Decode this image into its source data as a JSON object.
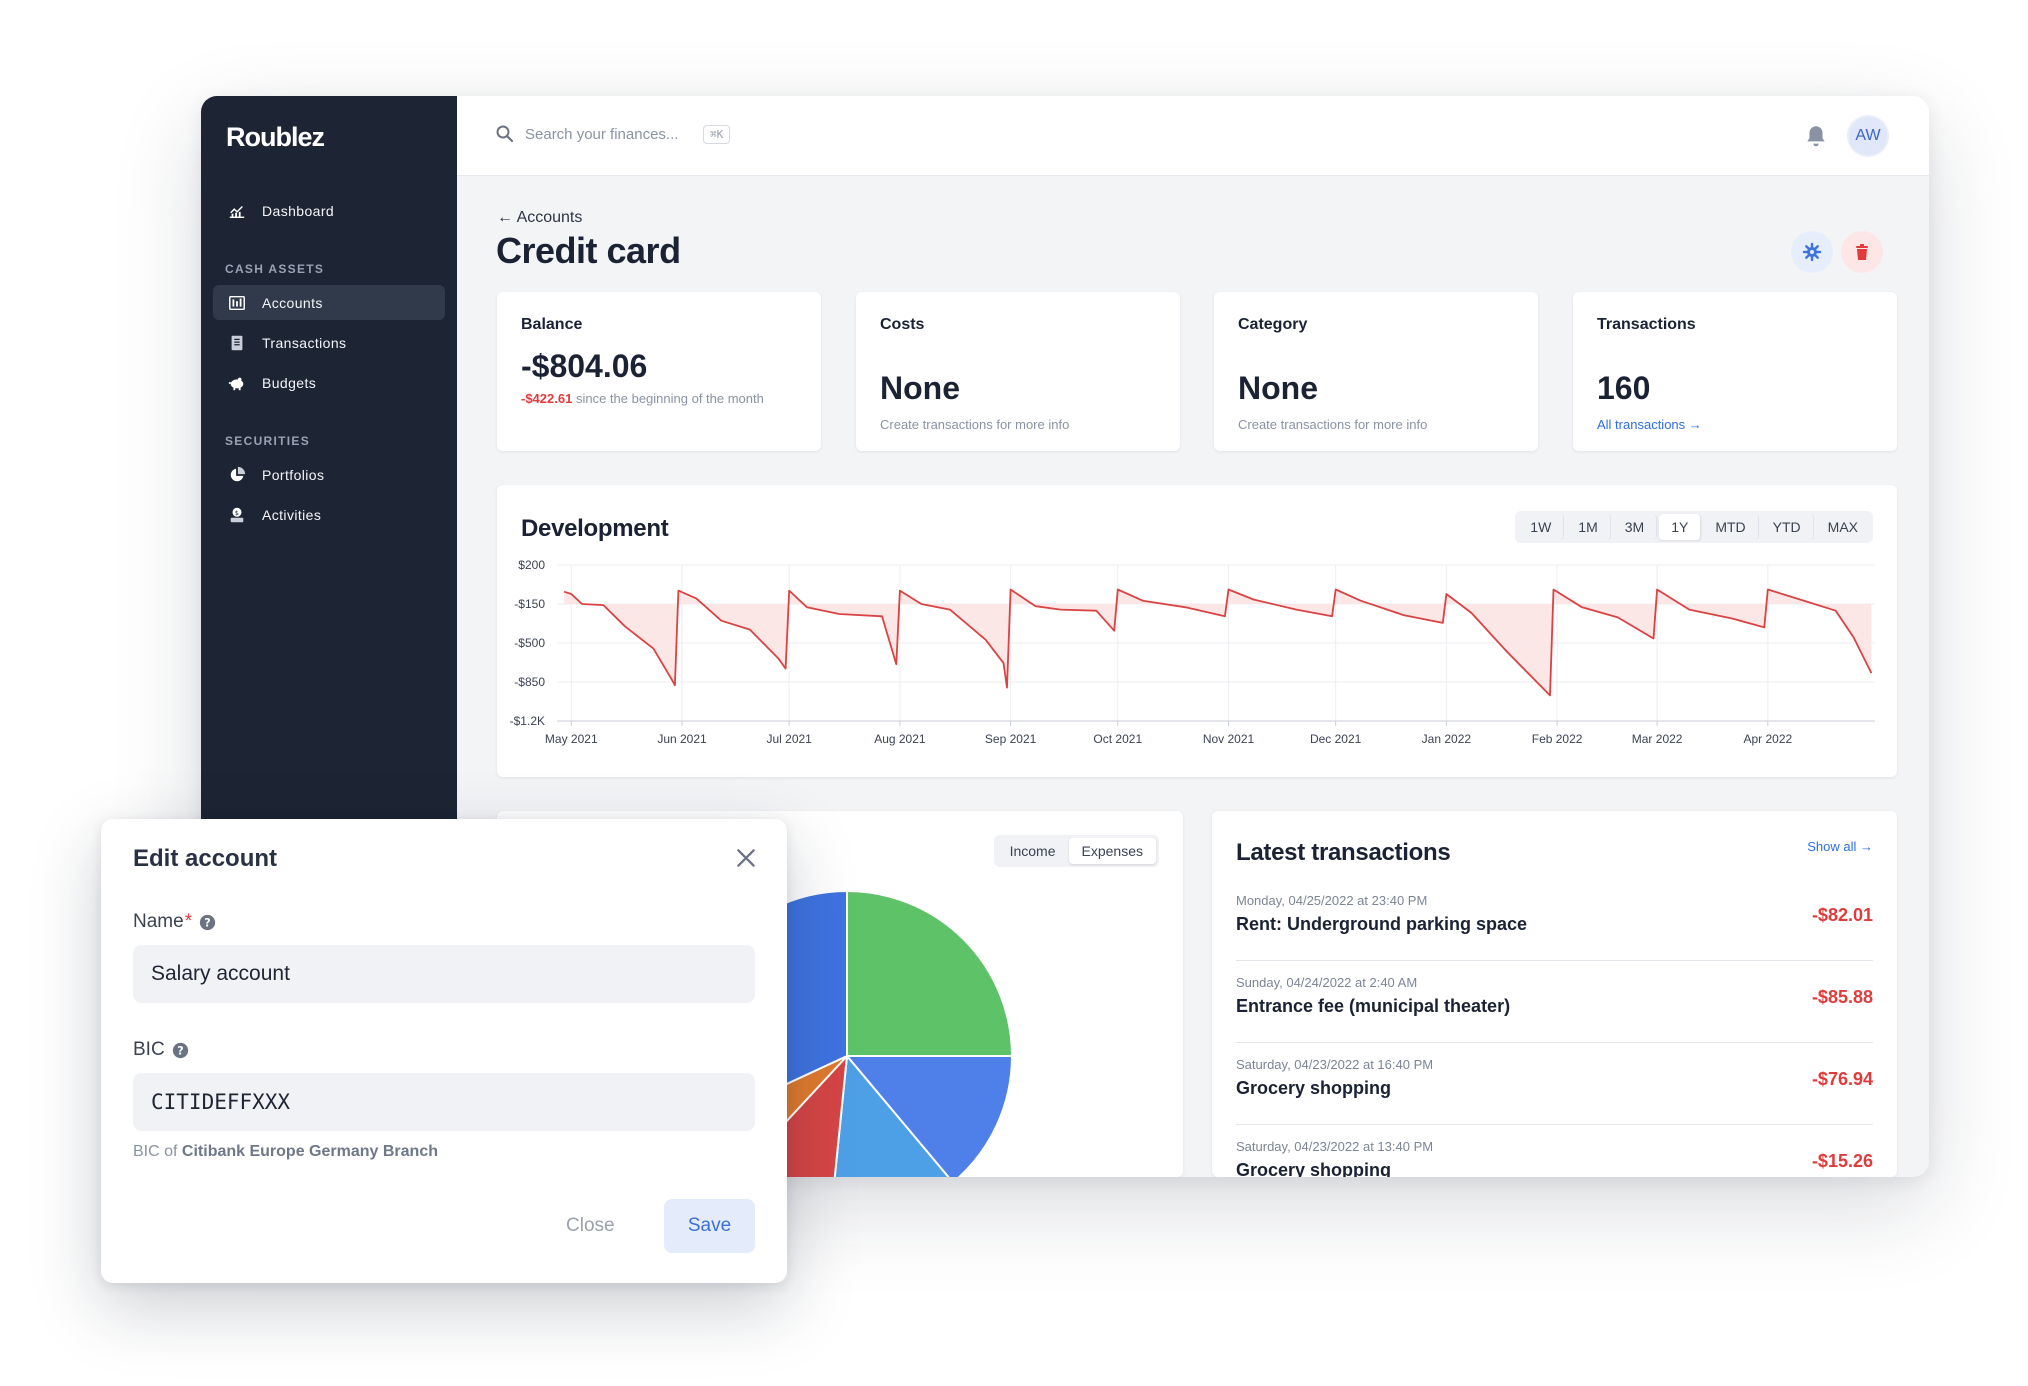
{
  "app": {
    "name": "Roublez"
  },
  "sidebar": {
    "dashboard": {
      "label": "Dashboard"
    },
    "sections": [
      {
        "title": "CASH ASSETS",
        "items": [
          {
            "label": "Accounts"
          },
          {
            "label": "Transactions"
          },
          {
            "label": "Budgets"
          }
        ]
      },
      {
        "title": "SECURITIES",
        "items": [
          {
            "label": "Portfolios"
          },
          {
            "label": "Activities"
          }
        ]
      }
    ]
  },
  "topbar": {
    "search_placeholder": "Search your finances...",
    "shortcut": "⌘K",
    "avatar_initials": "AW"
  },
  "page": {
    "back_label": "Accounts",
    "title": "Credit card"
  },
  "stats": {
    "balance": {
      "label": "Balance",
      "value": "-$804.06",
      "delta": "-$422.61",
      "delta_text": "since the beginning of the month"
    },
    "costs": {
      "label": "Costs",
      "value": "None",
      "sub": "Create transactions for more info"
    },
    "category": {
      "label": "Category",
      "value": "None",
      "sub": "Create transactions for more info"
    },
    "transactions": {
      "label": "Transactions",
      "value": "160",
      "link": "All transactions →"
    }
  },
  "development": {
    "title": "Development",
    "ranges": [
      "1W",
      "1M",
      "3M",
      "1Y",
      "MTD",
      "YTD",
      "MAX"
    ],
    "active_range": "1Y"
  },
  "breakdown": {
    "tabs": [
      "Income",
      "Expenses"
    ],
    "active_tab": "Expenses"
  },
  "latest": {
    "title": "Latest transactions",
    "show_all": "Show all →",
    "items": [
      {
        "date": "Monday, 04/25/2022 at 23:40 PM",
        "name": "Rent: Underground parking space",
        "amount": "-$82.01"
      },
      {
        "date": "Sunday, 04/24/2022 at 2:40 AM",
        "name": "Entrance fee (municipal theater)",
        "amount": "-$85.88"
      },
      {
        "date": "Saturday, 04/23/2022 at 16:40 PM",
        "name": "Grocery shopping",
        "amount": "-$76.94"
      },
      {
        "date": "Saturday, 04/23/2022 at 13:40 PM",
        "name": "Grocery shopping",
        "amount": "-$15.26"
      }
    ]
  },
  "modal": {
    "title": "Edit account",
    "name_label": "Name",
    "name_required_mark": "*",
    "name_value": "Salary account",
    "bic_label": "BIC",
    "bic_value": "CITIDEFFXXX",
    "bic_hint_prefix": "BIC of",
    "bic_hint_bank": "Citibank Europe Germany Branch",
    "close_label": "Close",
    "save_label": "Save"
  },
  "colors": {
    "sidebar_bg": "#1d2433",
    "accent_blue": "#2f6fe0",
    "negative_red": "#e13b3b",
    "chart_line": "#d94343",
    "chart_fill": "#fbe3e3"
  },
  "chart_data": [
    {
      "type": "area",
      "title": "Development",
      "y_ticks": [
        "$200",
        "-$150",
        "-$500",
        "-$850",
        "-$1.2K"
      ],
      "ylim": [
        -1200,
        200
      ],
      "x_ticks": [
        "May 2021",
        "Jun 2021",
        "Jul 2021",
        "Aug 2021",
        "Sep 2021",
        "Oct 2021",
        "Nov 2021",
        "Dec 2021",
        "Jan 2022",
        "Feb 2022",
        "Mar 2022",
        "Apr 2022"
      ],
      "grid": true,
      "series": [
        {
          "values": [
            {
              "x": "2021-04-29",
              "y": -40
            },
            {
              "x": "2021-05-01",
              "y": -60
            },
            {
              "x": "2021-05-04",
              "y": -150
            },
            {
              "x": "2021-05-10",
              "y": -160
            },
            {
              "x": "2021-05-16",
              "y": -350
            },
            {
              "x": "2021-05-24",
              "y": -550
            },
            {
              "x": "2021-05-29",
              "y": -820
            },
            {
              "x": "2021-05-30",
              "y": -880
            },
            {
              "x": "2021-05-31",
              "y": -30
            },
            {
              "x": "2021-06-05",
              "y": -100
            },
            {
              "x": "2021-06-12",
              "y": -300
            },
            {
              "x": "2021-06-20",
              "y": -380
            },
            {
              "x": "2021-06-28",
              "y": -640
            },
            {
              "x": "2021-06-30",
              "y": -730
            },
            {
              "x": "2021-07-01",
              "y": -30
            },
            {
              "x": "2021-07-06",
              "y": -180
            },
            {
              "x": "2021-07-15",
              "y": -240
            },
            {
              "x": "2021-07-27",
              "y": -260
            },
            {
              "x": "2021-07-31",
              "y": -690
            },
            {
              "x": "2021-08-01",
              "y": -30
            },
            {
              "x": "2021-08-07",
              "y": -150
            },
            {
              "x": "2021-08-15",
              "y": -200
            },
            {
              "x": "2021-08-25",
              "y": -470
            },
            {
              "x": "2021-08-30",
              "y": -680
            },
            {
              "x": "2021-08-31",
              "y": -900
            },
            {
              "x": "2021-09-01",
              "y": -20
            },
            {
              "x": "2021-09-08",
              "y": -170
            },
            {
              "x": "2021-09-15",
              "y": -200
            },
            {
              "x": "2021-09-25",
              "y": -210
            },
            {
              "x": "2021-09-30",
              "y": -390
            },
            {
              "x": "2021-10-01",
              "y": -20
            },
            {
              "x": "2021-10-08",
              "y": -120
            },
            {
              "x": "2021-10-20",
              "y": -180
            },
            {
              "x": "2021-10-31",
              "y": -260
            },
            {
              "x": "2021-11-01",
              "y": -20
            },
            {
              "x": "2021-11-08",
              "y": -110
            },
            {
              "x": "2021-11-20",
              "y": -200
            },
            {
              "x": "2021-11-30",
              "y": -260
            },
            {
              "x": "2021-12-01",
              "y": -20
            },
            {
              "x": "2021-12-08",
              "y": -120
            },
            {
              "x": "2021-12-20",
              "y": -250
            },
            {
              "x": "2021-12-31",
              "y": -320
            },
            {
              "x": "2022-01-01",
              "y": -60
            },
            {
              "x": "2022-01-08",
              "y": -230
            },
            {
              "x": "2022-01-18",
              "y": -580
            },
            {
              "x": "2022-01-30",
              "y": -970
            },
            {
              "x": "2022-01-31",
              "y": -20
            },
            {
              "x": "2022-02-08",
              "y": -180
            },
            {
              "x": "2022-02-18",
              "y": -270
            },
            {
              "x": "2022-02-28",
              "y": -460
            },
            {
              "x": "2022-03-01",
              "y": -20
            },
            {
              "x": "2022-03-10",
              "y": -200
            },
            {
              "x": "2022-03-22",
              "y": -280
            },
            {
              "x": "2022-03-31",
              "y": -360
            },
            {
              "x": "2022-04-01",
              "y": -20
            },
            {
              "x": "2022-04-10",
              "y": -110
            },
            {
              "x": "2022-04-20",
              "y": -210
            },
            {
              "x": "2022-04-25",
              "y": -450
            },
            {
              "x": "2022-04-30",
              "y": -770
            }
          ]
        }
      ]
    },
    {
      "type": "pie",
      "values": [
        {
          "label": "",
          "value": 25,
          "color": "#5ec269"
        },
        {
          "label": "",
          "value": 13.9,
          "color": "#4f7fe8"
        },
        {
          "label": "",
          "value": 12.7,
          "color": "#4ea0e6"
        },
        {
          "label": "",
          "value": 10.3,
          "color": "#d64545"
        },
        {
          "label": "",
          "value": 6.2,
          "color": "#e07a2e"
        },
        {
          "label": "",
          "value": 31.9,
          "color": "#3f73e0"
        }
      ]
    }
  ]
}
